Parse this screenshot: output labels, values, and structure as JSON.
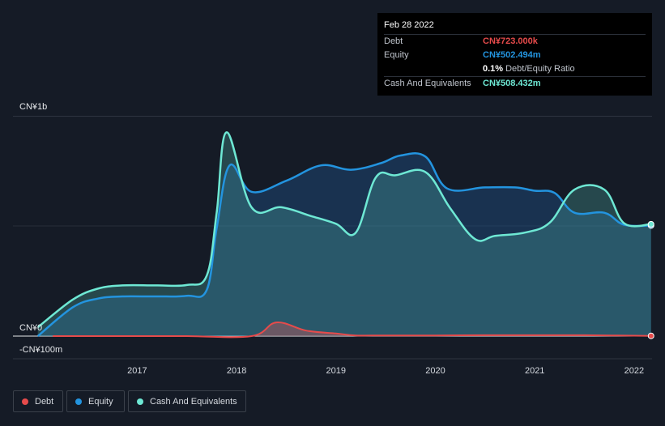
{
  "tooltip": {
    "date": "Feb 28 2022",
    "debt_label": "Debt",
    "debt_value": "CN¥723.000k",
    "equity_label": "Equity",
    "equity_value": "CN¥502.494m",
    "ratio_value": "0.1%",
    "ratio_label": "Debt/Equity Ratio",
    "cash_label": "Cash And Equivalents",
    "cash_value": "CN¥508.432m"
  },
  "legend": {
    "debt": "Debt",
    "equity": "Equity",
    "cash": "Cash And Equivalents"
  },
  "colors": {
    "debt": "#e64b4b",
    "equity": "#2394df",
    "cash": "#6ee8d4"
  },
  "chart_data": {
    "type": "area",
    "y_unit": "CN¥ millions",
    "ylim": [
      -100,
      1000
    ],
    "y_tick_labels": [
      {
        "value": 1000,
        "label": "CN¥1b"
      },
      {
        "value": 0,
        "label": "CN¥0"
      },
      {
        "value": -100,
        "label": "-CN¥100m"
      }
    ],
    "x_tick_labels": [
      {
        "value": 2017,
        "label": "2017"
      },
      {
        "value": 2018,
        "label": "2018"
      },
      {
        "value": 2019,
        "label": "2019"
      },
      {
        "value": 2020,
        "label": "2020"
      },
      {
        "value": 2021,
        "label": "2021"
      },
      {
        "value": 2022,
        "label": "2022"
      }
    ],
    "xlim": [
      2015.75,
      2022.18
    ],
    "series": [
      {
        "name": "Debt",
        "key": "debt",
        "points": [
          [
            2016.15,
            0
          ],
          [
            2017.15,
            0
          ],
          [
            2017.5,
            0
          ],
          [
            2018.15,
            0
          ],
          [
            2018.4,
            62
          ],
          [
            2018.7,
            25
          ],
          [
            2019.0,
            12
          ],
          [
            2019.2,
            3
          ],
          [
            2019.5,
            3
          ],
          [
            2020.0,
            3
          ],
          [
            2020.5,
            4
          ],
          [
            2021.0,
            4
          ],
          [
            2021.5,
            4
          ],
          [
            2022.17,
            1
          ]
        ]
      },
      {
        "name": "Equity",
        "key": "equity",
        "points": [
          [
            2016.0,
            0
          ],
          [
            2016.35,
            130
          ],
          [
            2016.6,
            170
          ],
          [
            2016.85,
            180
          ],
          [
            2017.2,
            180
          ],
          [
            2017.5,
            183
          ],
          [
            2017.7,
            210
          ],
          [
            2017.8,
            490
          ],
          [
            2017.93,
            775
          ],
          [
            2018.15,
            655
          ],
          [
            2018.5,
            705
          ],
          [
            2018.85,
            775
          ],
          [
            2019.15,
            755
          ],
          [
            2019.45,
            785
          ],
          [
            2019.65,
            820
          ],
          [
            2019.9,
            815
          ],
          [
            2020.12,
            670
          ],
          [
            2020.5,
            675
          ],
          [
            2020.8,
            675
          ],
          [
            2021.0,
            660
          ],
          [
            2021.2,
            650
          ],
          [
            2021.4,
            560
          ],
          [
            2021.7,
            560
          ],
          [
            2021.9,
            505
          ],
          [
            2022.17,
            502
          ]
        ]
      },
      {
        "name": "Cash And Equivalents",
        "key": "cash",
        "points": [
          [
            2016.0,
            40
          ],
          [
            2016.35,
            165
          ],
          [
            2016.6,
            215
          ],
          [
            2016.85,
            230
          ],
          [
            2017.2,
            230
          ],
          [
            2017.5,
            232
          ],
          [
            2017.7,
            275
          ],
          [
            2017.8,
            560
          ],
          [
            2017.9,
            925
          ],
          [
            2018.15,
            585
          ],
          [
            2018.45,
            585
          ],
          [
            2018.75,
            545
          ],
          [
            2019.0,
            510
          ],
          [
            2019.2,
            470
          ],
          [
            2019.4,
            720
          ],
          [
            2019.6,
            730
          ],
          [
            2019.9,
            745
          ],
          [
            2020.15,
            580
          ],
          [
            2020.4,
            440
          ],
          [
            2020.6,
            455
          ],
          [
            2020.9,
            470
          ],
          [
            2021.15,
            515
          ],
          [
            2021.4,
            665
          ],
          [
            2021.7,
            665
          ],
          [
            2021.9,
            512
          ],
          [
            2022.17,
            508
          ]
        ]
      }
    ]
  }
}
